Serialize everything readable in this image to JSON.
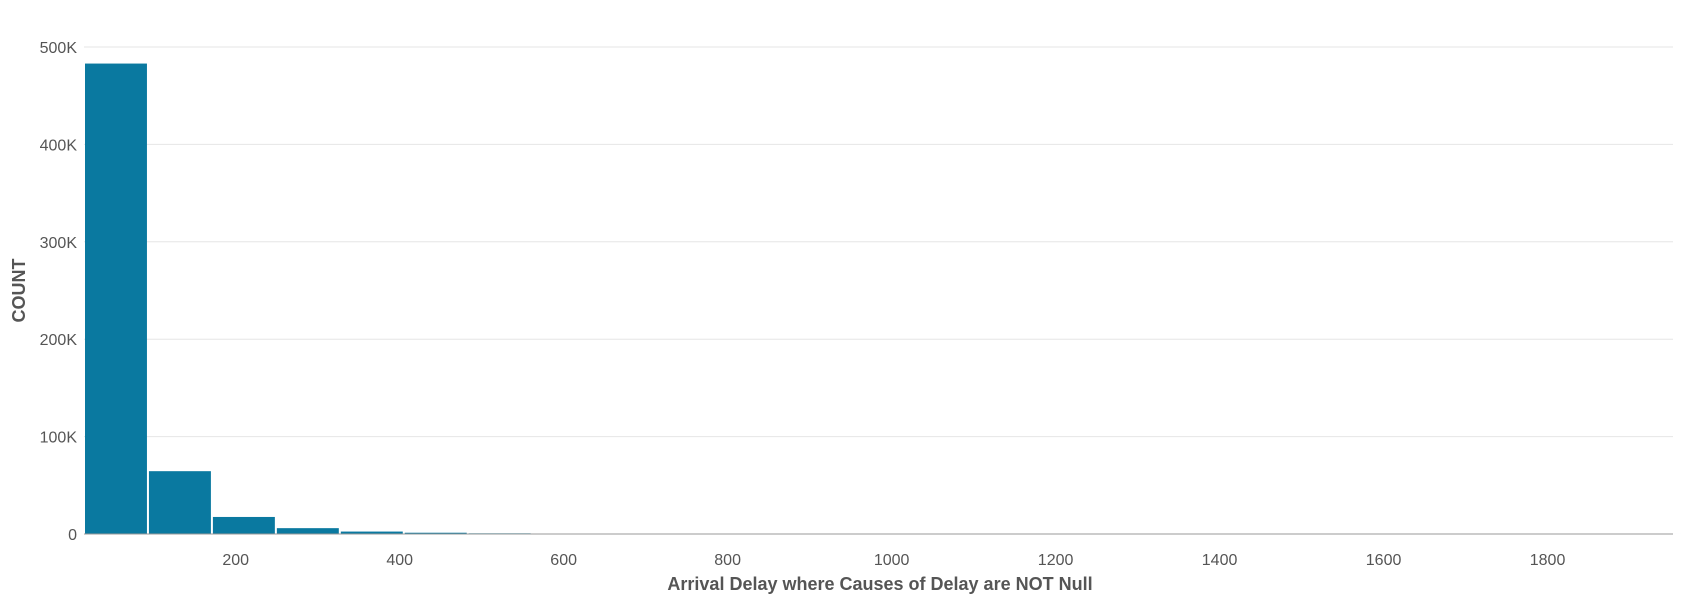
{
  "chart_data": {
    "type": "bar",
    "subtype": "histogram",
    "title": "",
    "xlabel": "Arrival Delay where Causes of Delay are NOT Null",
    "ylabel": "COUNT",
    "xlim": [
      15,
      1953
    ],
    "ylim": [
      0,
      500000
    ],
    "x_ticks": [
      200,
      400,
      600,
      800,
      1000,
      1200,
      1400,
      1600,
      1800
    ],
    "y_ticks": [
      0,
      100000,
      200000,
      300000,
      400000,
      500000
    ],
    "y_tick_labels": [
      "0",
      "100K",
      "200K",
      "300K",
      "400K",
      "500K"
    ],
    "bin_width": 78,
    "bin_starts": [
      15,
      93,
      171,
      249,
      327,
      405,
      483,
      561,
      639,
      717,
      795,
      873,
      951,
      1029,
      1107,
      1185,
      1263,
      1341,
      1419,
      1497,
      1575,
      1653,
      1731,
      1809,
      1887
    ],
    "values": [
      483000,
      64500,
      17500,
      6000,
      2500,
      1300,
      700,
      400,
      250,
      150,
      100,
      80,
      60,
      50,
      40,
      30,
      25,
      20,
      15,
      12,
      10,
      8,
      6,
      5,
      4
    ],
    "grid": true,
    "legend": "none",
    "colors": {
      "bar": "#0a79a0",
      "grid": "#e6e6e6",
      "axis": "#999999"
    }
  }
}
